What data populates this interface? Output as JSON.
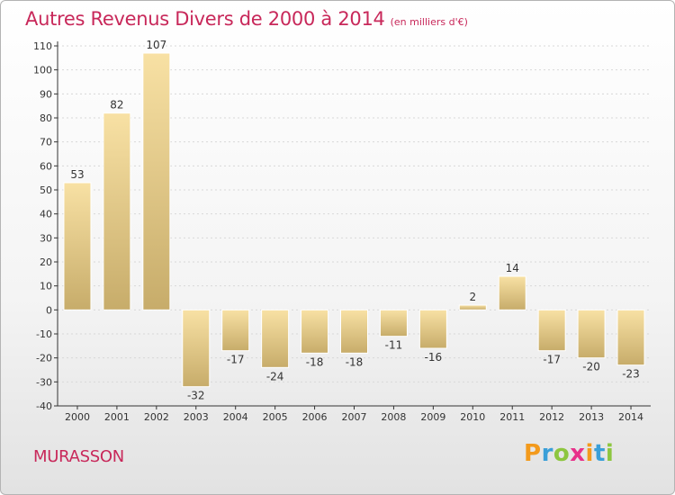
{
  "header": {
    "title": "Autres Revenus Divers de 2000 à 2014",
    "unit": "(en milliers d'€)"
  },
  "footer": {
    "commune": "MURASSON",
    "logo_letters": [
      {
        "char": "P",
        "color": "#f39a1c"
      },
      {
        "char": "r",
        "color": "#3a9fd8"
      },
      {
        "char": "o",
        "color": "#8dc63f"
      },
      {
        "char": "x",
        "color": "#e8318a"
      },
      {
        "char": "i",
        "color": "#f39a1c"
      },
      {
        "char": "t",
        "color": "#3a9fd8"
      },
      {
        "char": "i",
        "color": "#8dc63f"
      }
    ]
  },
  "colors": {
    "title": "#c8285a",
    "bar_light": "#f8e1a4",
    "bar_dark": "#c7ac6a",
    "axis": "#333333",
    "grid": "#d8d8d8"
  },
  "chart_data": {
    "type": "bar",
    "categories": [
      "2000",
      "2001",
      "2002",
      "2003",
      "2004",
      "2005",
      "2006",
      "2007",
      "2008",
      "2009",
      "2010",
      "2011",
      "2012",
      "2013",
      "2014"
    ],
    "values": [
      53,
      82,
      107,
      -32,
      -17,
      -24,
      -18,
      -18,
      -11,
      -16,
      2,
      14,
      -17,
      -20,
      -23
    ],
    "labels": [
      "53",
      "82",
      "107",
      "-32",
      "-17",
      "-24",
      "-18",
      "-18",
      "-11",
      "-16",
      "2",
      "14",
      "-17",
      "-20",
      "-23"
    ],
    "ylim": [
      -40,
      110
    ],
    "yticks": [
      -40,
      -30,
      -20,
      -10,
      0,
      10,
      20,
      30,
      40,
      50,
      60,
      70,
      80,
      90,
      100,
      110
    ],
    "grid": true,
    "legend": false
  }
}
